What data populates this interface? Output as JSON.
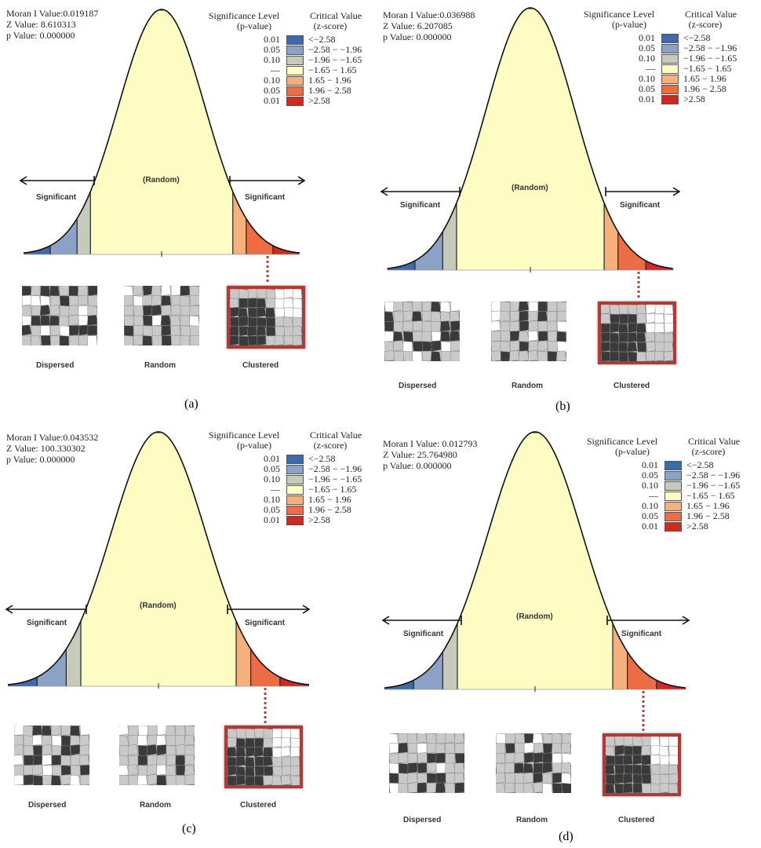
{
  "colors": {
    "z_lt_258": "#3d6aa8",
    "z_258_196": "#8ba2c6",
    "z_196_165": "#c5cabb",
    "z_165_165": "#fdfcc2",
    "z_165_196": "#f6b07c",
    "z_196_258": "#ec6c43",
    "z_gt_258": "#cf2a22",
    "frame": "#b03a36"
  },
  "common": {
    "legend_header_sig": "Significance Level",
    "legend_header_sig_sub": "(p-value)",
    "legend_header_crit": "Critical Value",
    "legend_header_crit_sub": "(z-score)",
    "legend_rows": [
      {
        "p": "0.01",
        "z": "<−2.58"
      },
      {
        "p": "0.05",
        "z": "−2.58 − −1.96"
      },
      {
        "p": "0.10",
        "z": "−1.96 − −1.65"
      },
      {
        "p": "—",
        "z": "−1.65 − 1.65"
      },
      {
        "p": "0.10",
        "z": "1.65 − 1.96"
      },
      {
        "p": "0.05",
        "z": "1.96 − 2.58"
      },
      {
        "p": "0.01",
        "z": ">2.58"
      }
    ],
    "significant_label": "Significant",
    "random_center_label": "(Random)",
    "dispersed_label": "Dispersed",
    "random_label": "Random",
    "clustered_label": "Clustered"
  },
  "panels": [
    {
      "moran": "Moran I Value:0.019187",
      "z": "Z Value: 8.610313",
      "p": "p Value: 0.000000",
      "caption": "(a)"
    },
    {
      "moran": "Moran I Value:0.036988",
      "z": "Z Value: 6.207085",
      "p": "p Value: 0.000000",
      "caption": "(b)"
    },
    {
      "moran": "Moran I Value:0.043532",
      "z": "Z Value: 100.330302",
      "p": "p Value: 0.000000",
      "caption": "(c)"
    },
    {
      "moran": "Moran I Value: 0.012793",
      "z": "Z Value: 25.764980",
      "p": "p Value: 0.000000",
      "caption": "(d)"
    }
  ]
}
